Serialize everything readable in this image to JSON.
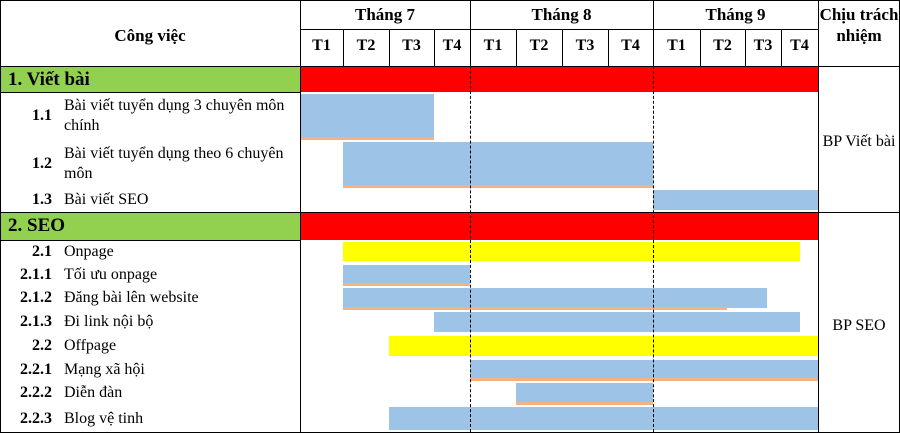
{
  "table": {
    "task_header": "Công việc",
    "owner_header": "Chịu trách nhiệm",
    "months": [
      "Tháng 7",
      "Tháng 8",
      "Tháng 9"
    ],
    "weeks": [
      "T1",
      "T2",
      "T3",
      "T4",
      "T1",
      "T2",
      "T3",
      "T4",
      "T1",
      "T2",
      "T3",
      "T4"
    ]
  },
  "colors": {
    "section_fill": "#92d050",
    "section_bar": "#ff0000",
    "subgroup_bar": "#ffff00",
    "task_bar": "#9dc3e6",
    "progress_line": "#f4b183"
  },
  "sections": [
    {
      "title": "1. Viết bài",
      "owner": "BP Viết bài",
      "span_weeks": [
        1,
        12
      ],
      "rows": [
        {
          "num": "1.1",
          "label": "Bài viết tuyển dụng 3 chuyên môn chính",
          "kind": "task",
          "start_week": 1,
          "end_week": 3,
          "progress_weeks": 3
        },
        {
          "num": "1.2",
          "label": "Bài viết tuyển dụng theo 6 chuyên môn",
          "kind": "task",
          "start_week": 2,
          "end_week": 8,
          "progress_weeks": 7
        },
        {
          "num": "1.3",
          "label": "Bài viết SEO",
          "kind": "task",
          "start_week": 9,
          "end_week": 12,
          "progress_weeks": 0
        }
      ]
    },
    {
      "title": "2. SEO",
      "owner": "BP SEO",
      "span_weeks": [
        1,
        12
      ],
      "rows": [
        {
          "num": "2.1",
          "label": "Onpage",
          "kind": "group",
          "start_week": 2,
          "end_week": 11.5
        },
        {
          "num": "2.1.1",
          "label": "Tối ưu onpage",
          "kind": "task",
          "start_week": 2,
          "end_week": 4,
          "progress_weeks": 3
        },
        {
          "num": "2.1.2",
          "label": "Đăng bài lên website",
          "kind": "task",
          "start_week": 2,
          "end_week": 10.6,
          "progress_weeks": 8.6
        },
        {
          "num": "2.1.3",
          "label": "Đi link nội bộ",
          "kind": "task",
          "start_week": 4,
          "end_week": 11.5,
          "progress_weeks": 0
        },
        {
          "num": "2.2",
          "label": "Offpage",
          "kind": "group",
          "start_week": 3,
          "end_week": 12
        },
        {
          "num": "2.2.1",
          "label": "Mạng xã hội",
          "kind": "task",
          "start_week": 5,
          "end_week": 12,
          "progress_weeks": 8
        },
        {
          "num": "2.2.2",
          "label": "Diễn đàn",
          "kind": "task",
          "start_week": 6,
          "end_week": 8,
          "progress_weeks": 3
        },
        {
          "num": "2.2.3",
          "label": "Blog vệ tinh",
          "kind": "task",
          "start_week": 3,
          "end_week": 12,
          "progress_weeks": 0
        }
      ]
    }
  ]
}
